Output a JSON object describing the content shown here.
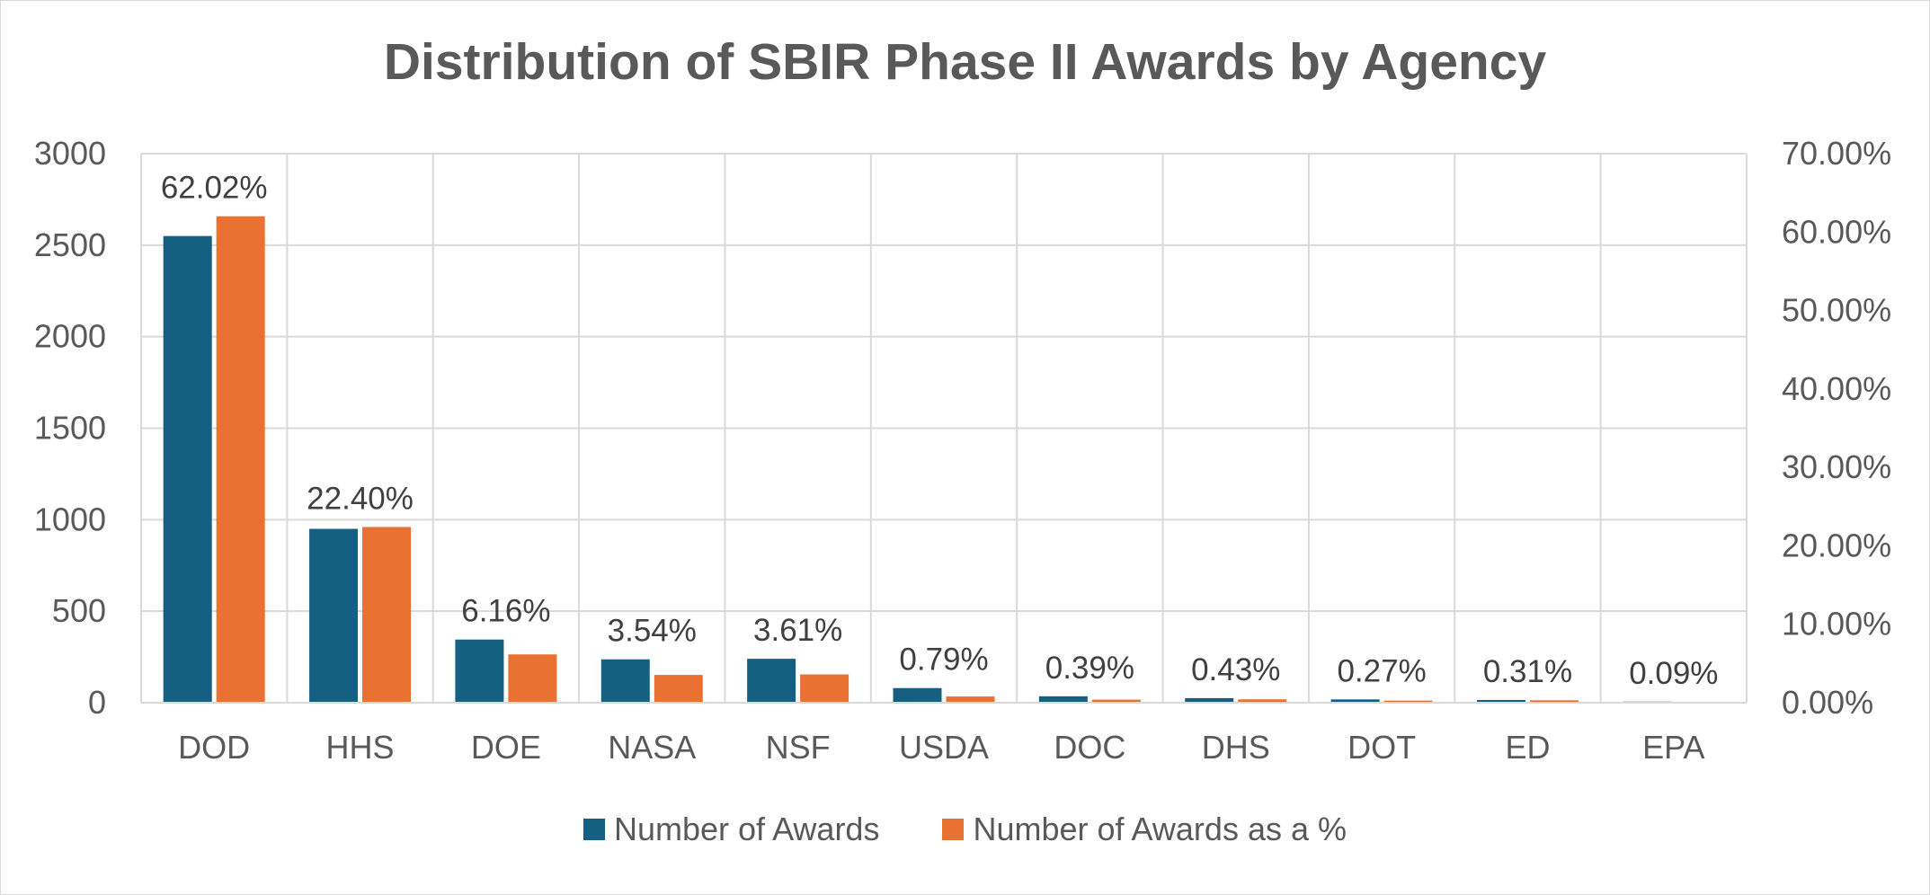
{
  "chart_data": {
    "type": "bar",
    "title": "Distribution of SBIR Phase II Awards by Agency",
    "categories": [
      "DOD",
      "HHS",
      "DOE",
      "NASA",
      "NSF",
      "USDA",
      "DOC",
      "DHS",
      "DOT",
      "ED",
      "EPA"
    ],
    "series": [
      {
        "name": "Number of Awards",
        "axis": "left",
        "color": "#156082",
        "values": [
          2550,
          950,
          345,
          237,
          240,
          80,
          35,
          25,
          18,
          15,
          6
        ]
      },
      {
        "name": "Number of Awards as a %",
        "axis": "right",
        "color": "#E97132",
        "values": [
          62.02,
          22.4,
          6.16,
          3.54,
          3.61,
          0.79,
          0.39,
          0.43,
          0.27,
          0.31,
          0.09
        ]
      }
    ],
    "data_labels": [
      "62.02%",
      "22.40%",
      "6.16%",
      "3.54%",
      "3.61%",
      "0.79%",
      "0.39%",
      "0.43%",
      "0.27%",
      "0.31%",
      "0.09%"
    ],
    "ylim_left": [
      0,
      3000
    ],
    "yticks_left": [
      "0",
      "500",
      "1000",
      "1500",
      "2000",
      "2500",
      "3000"
    ],
    "ylim_right": [
      0,
      70
    ],
    "yticks_right": [
      "0.00%",
      "10.00%",
      "20.00%",
      "30.00%",
      "40.00%",
      "50.00%",
      "60.00%",
      "70.00%"
    ],
    "xlabel": "",
    "ylabel": "",
    "grid": true,
    "legend_position": "bottom",
    "colors": {
      "text": "#595959",
      "grid": "#d9d9d9",
      "label": "#404040"
    }
  }
}
